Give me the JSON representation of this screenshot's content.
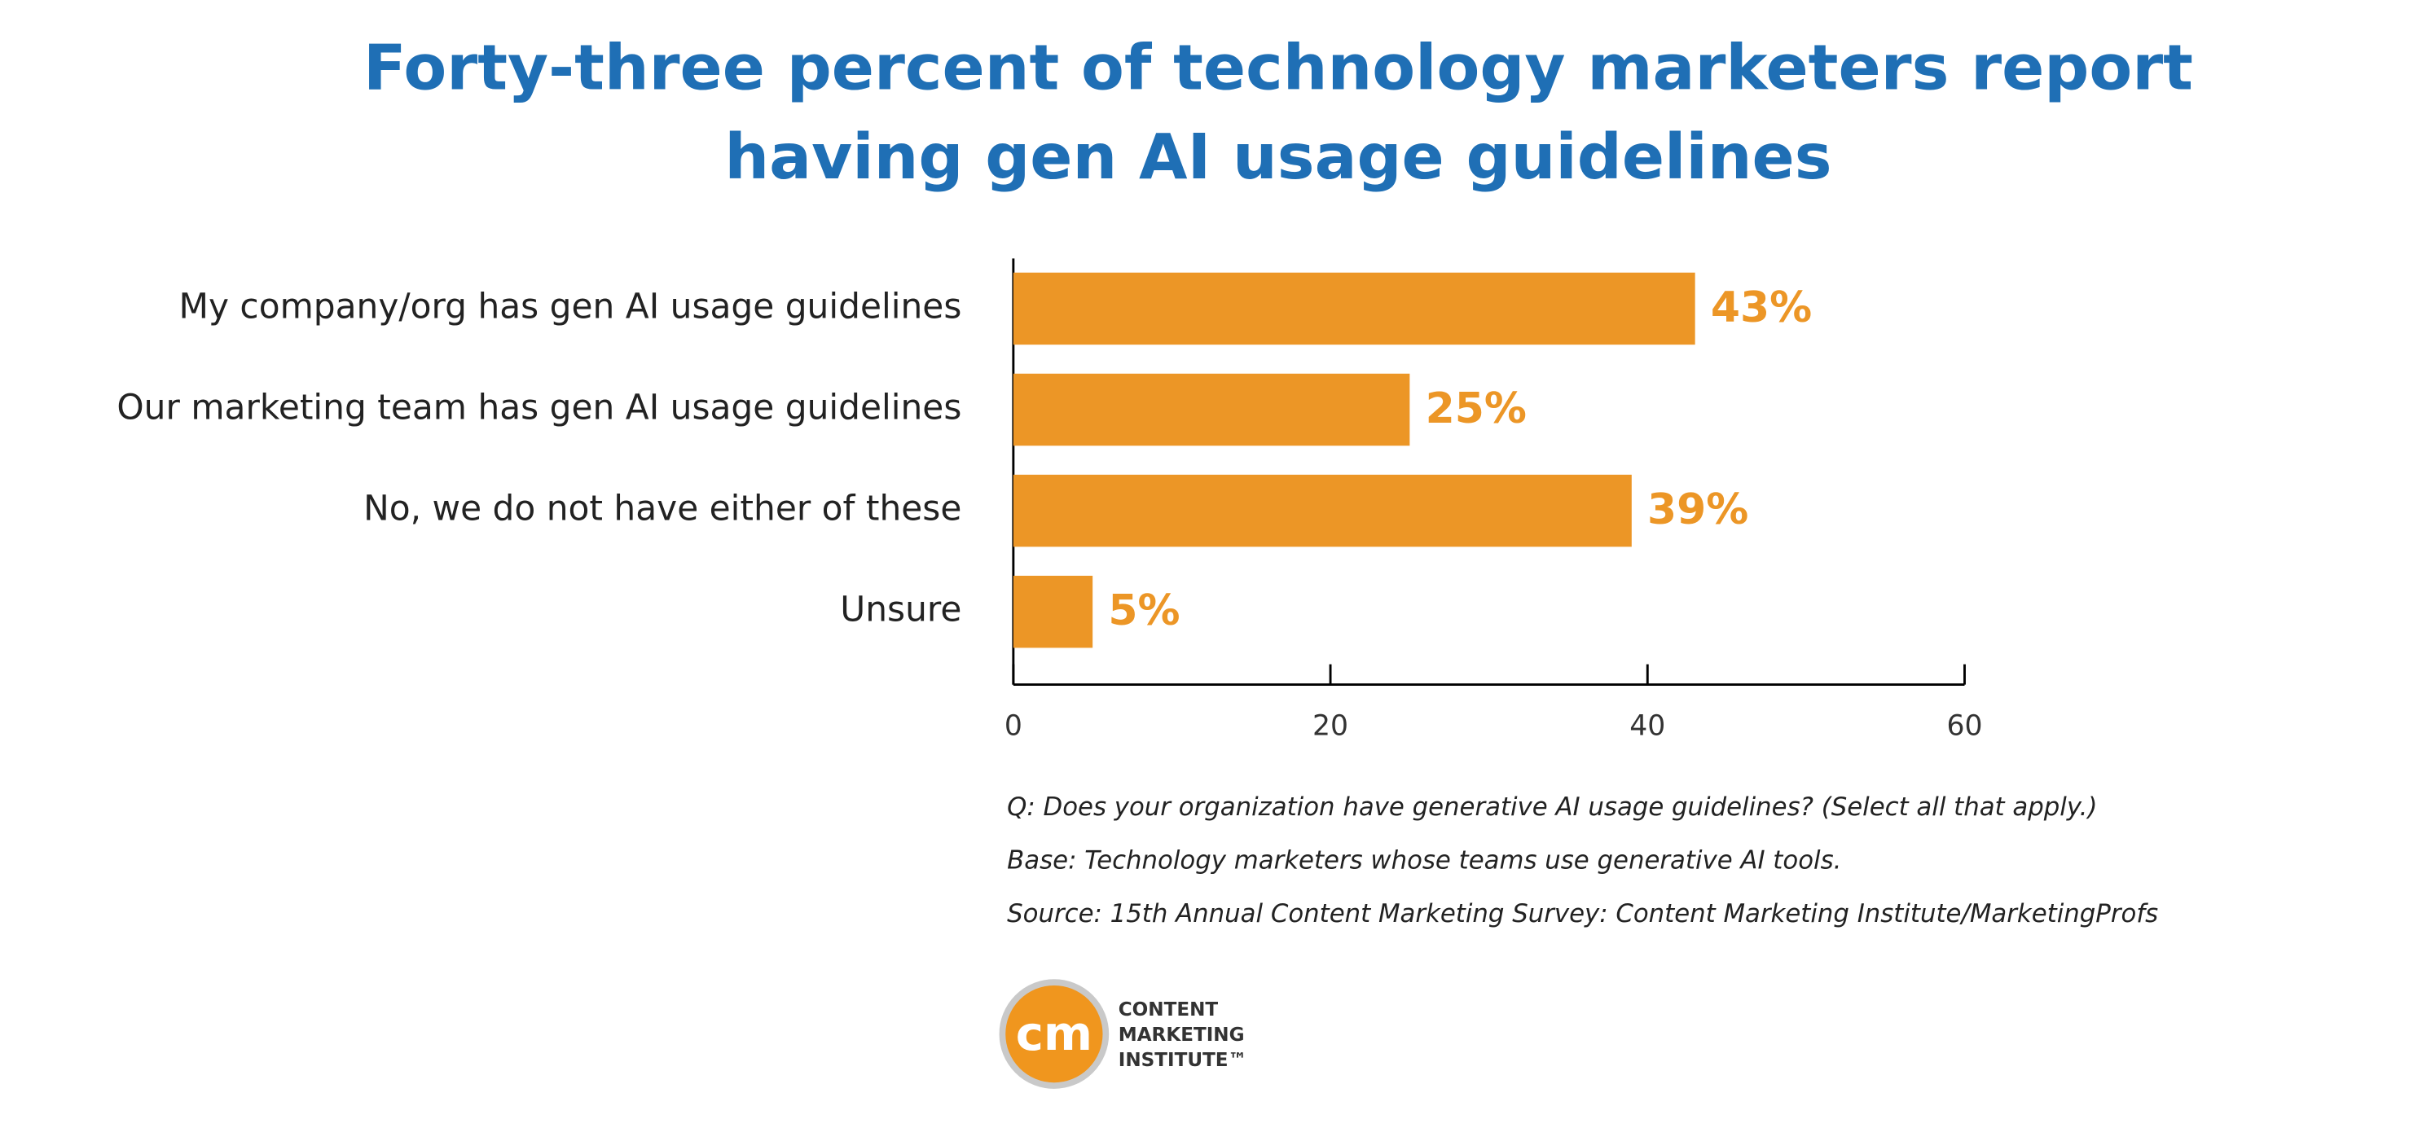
{
  "chart_data": {
    "type": "hbar",
    "title": [
      "Forty-three percent of technology marketers report",
      "having gen AI usage guidelines"
    ],
    "categories": [
      "My company/org has gen AI usage guidelines",
      "Our marketing team has gen AI usage guidelines",
      "No, we do not have either of these",
      "Unsure"
    ],
    "values": [
      43,
      25,
      39,
      5
    ],
    "value_labels": [
      "43%",
      "25%",
      "39%",
      "5%"
    ],
    "color": "#ec9626",
    "xlim": [
      0,
      60
    ],
    "xticks": [
      0,
      20,
      40,
      60
    ],
    "grid": false
  },
  "notes": [
    "Q: Does your organization have generative AI usage guidelines? (Select all that apply.)",
    "Base: Technology marketers whose teams use generative AI tools.",
    "Source: 15th Annual Content Marketing Survey: Content Marketing Institute/MarketingProfs"
  ],
  "logo": {
    "mark": "cm",
    "lines": [
      "CONTENT",
      "MARKETING",
      "INSTITUTE™"
    ]
  }
}
